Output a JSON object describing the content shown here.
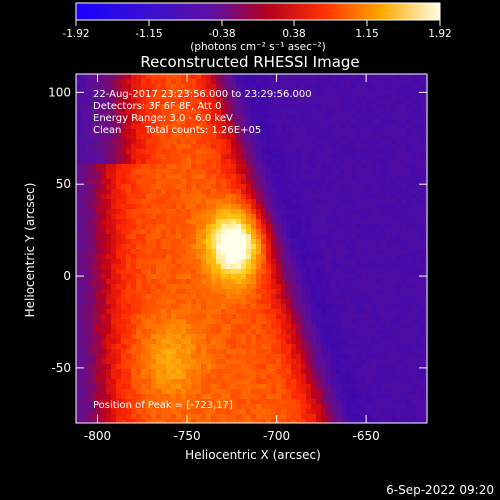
{
  "chart_data": {
    "type": "heatmap",
    "title": "Reconstructed RHESSI Image",
    "xlabel": "Heliocentric X (arcsec)",
    "ylabel": "Heliocentric Y (arcsec)",
    "xlim": [
      -812,
      -616
    ],
    "ylim": [
      -80,
      110
    ],
    "x_ticks": [
      -800,
      -750,
      -700,
      -650
    ],
    "y_ticks": [
      -50,
      0,
      50,
      100
    ],
    "colorbar": {
      "min": -1.92,
      "max": 1.92,
      "ticks": [
        -1.92,
        -1.15,
        -0.38,
        0.38,
        1.15,
        1.92
      ],
      "tick_labels": [
        "-1.92",
        "-1.15",
        "-0.38",
        "0.38",
        "1.15",
        "1.92"
      ],
      "unit_label": "(photons cm⁻² s⁻¹ asec⁻²)"
    },
    "peak": {
      "x": -723,
      "y": 17
    },
    "annotations": {
      "time_range": "22-Aug-2017 23:23:56.000 to 23:29:56.000",
      "detectors": "Detectors: 3F 6F 8F, Att 0",
      "energy": "Energy Range: 3.0 - 6.0 keV",
      "algorithm": "Clean",
      "counts": "Total counts: 1.26E+05",
      "peak_text": "Position of Peak = [-723,17]"
    },
    "footer_date": "6-Sep-2022 09:20"
  }
}
